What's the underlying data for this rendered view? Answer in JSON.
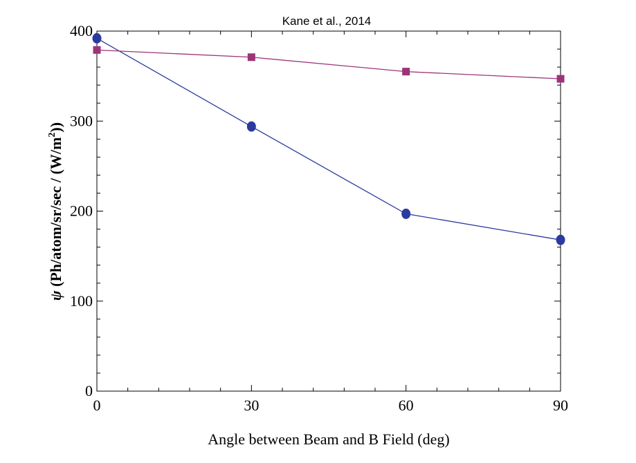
{
  "chart_data": {
    "type": "line",
    "title": "Kane et al., 2014",
    "xlabel": "Angle between Beam and B Field (deg)",
    "ylabel_prefix": "ψ",
    "ylabel_text": " (Ph/atom/sr/sec / (W/m",
    "ylabel_sup": "2",
    "ylabel_end": "))",
    "xlim": [
      0,
      90
    ],
    "ylim": [
      0,
      400
    ],
    "x_ticks": [
      "0",
      "30",
      "60",
      "90"
    ],
    "y_ticks": [
      "0",
      "100",
      "200",
      "300",
      "400"
    ],
    "grid": false,
    "legend": "none",
    "series": [
      {
        "marker": "circle",
        "color": "#2b3a9e",
        "x": [
          0,
          30,
          60,
          90
        ],
        "values": [
          392,
          294,
          197,
          168
        ]
      },
      {
        "marker": "square",
        "color": "#9c3478",
        "x": [
          0,
          30,
          60,
          90
        ],
        "values": [
          379,
          371,
          355,
          347
        ]
      }
    ]
  }
}
